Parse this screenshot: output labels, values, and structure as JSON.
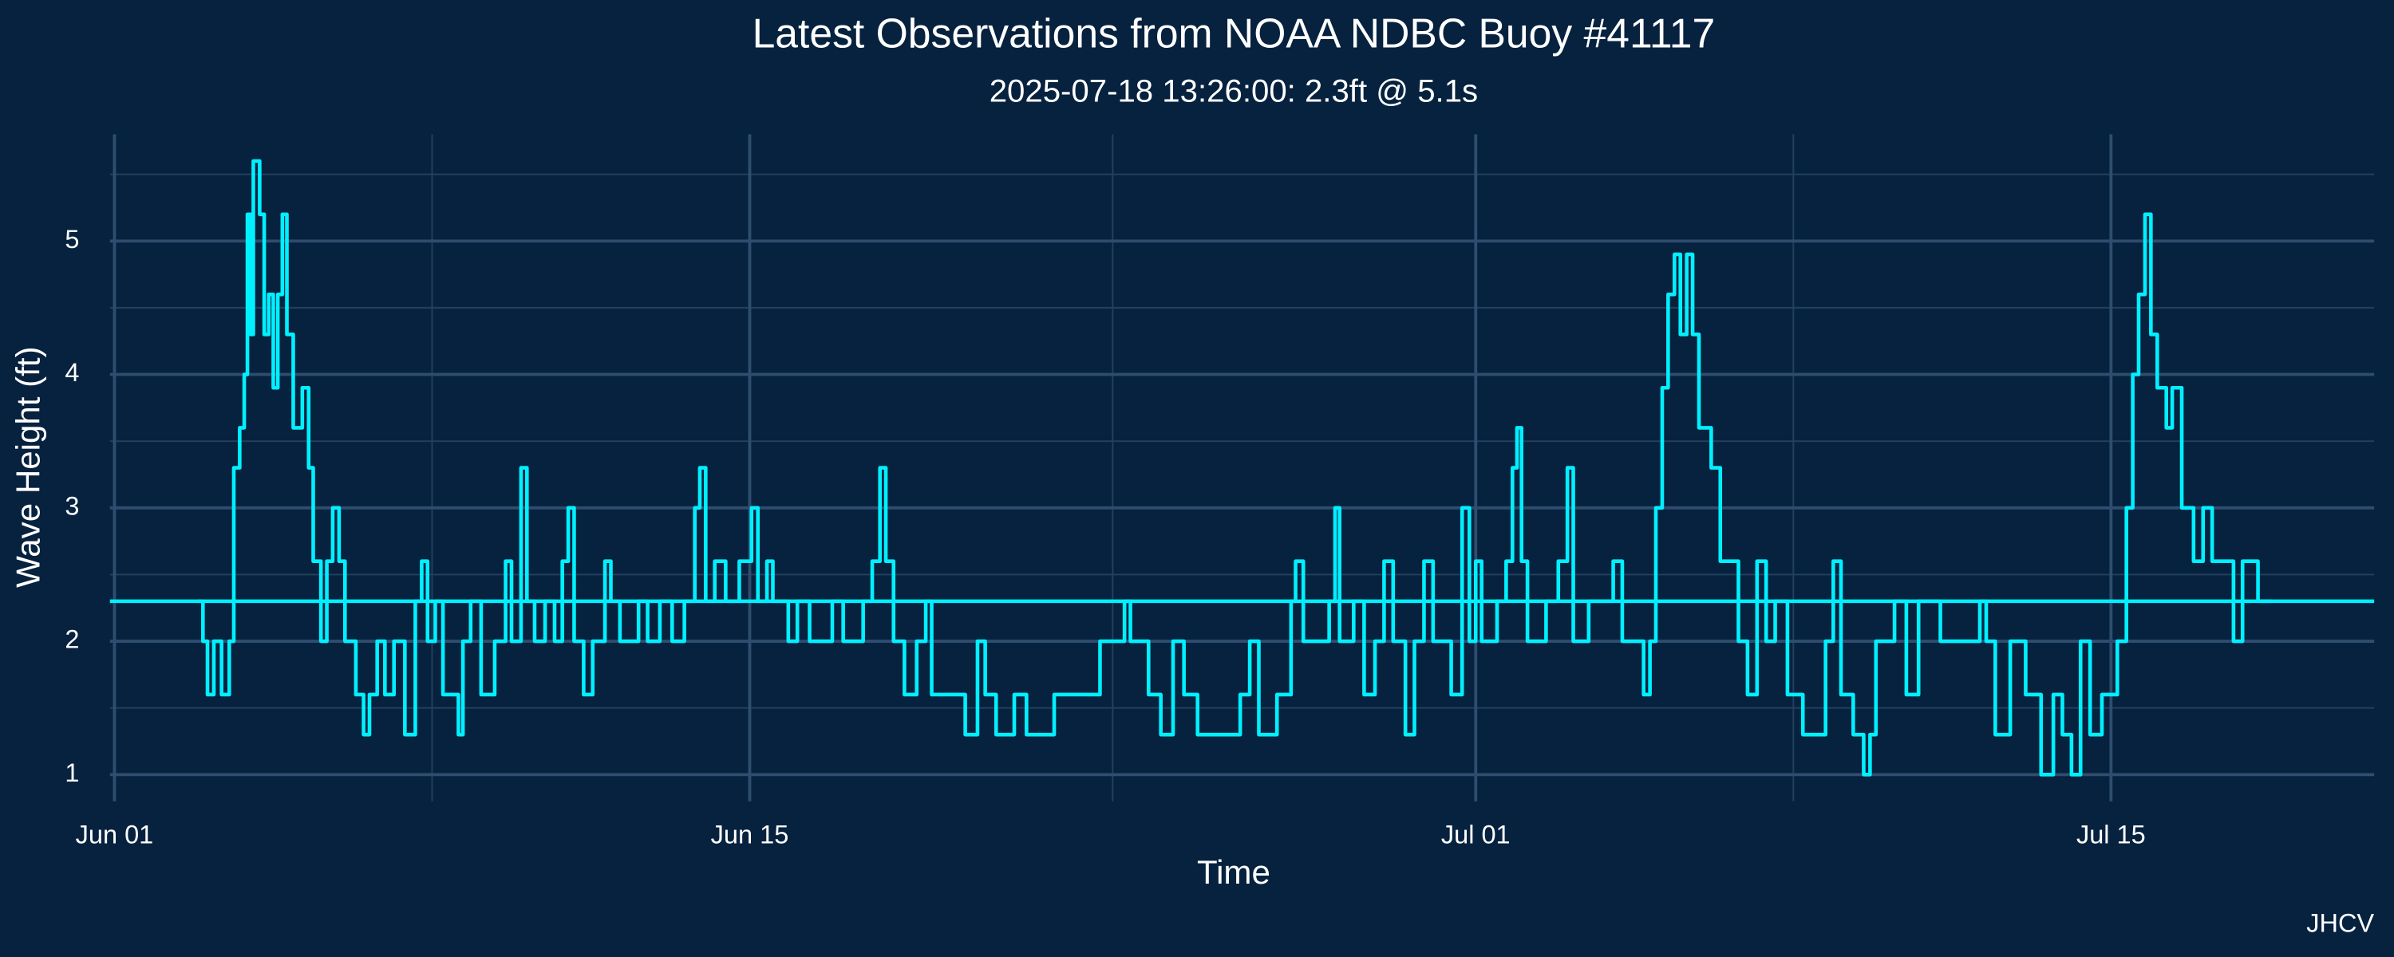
{
  "chart_data": {
    "type": "line",
    "title": "Latest Observations from NOAA NDBC Buoy #41117",
    "subtitle": "2025-07-18 13:26:00: 2.3ft @ 5.1s",
    "x_label": "Time",
    "y_label": "Wave Height (ft)",
    "caption": "JHCV",
    "background": "#06223f",
    "grid": true,
    "step": true,
    "xlim": [
      -0.1,
      49.8
    ],
    "xticks": [
      {
        "value": 0,
        "label": "Jun 01"
      },
      {
        "value": 14,
        "label": "Jun 15"
      },
      {
        "value": 30,
        "label": "Jul 01"
      },
      {
        "value": 44,
        "label": "Jul 15"
      }
    ],
    "x_minor_ticks": [
      7,
      22,
      37
    ],
    "ylim": [
      0.8,
      5.8
    ],
    "yticks": [
      1,
      2,
      3,
      4,
      5
    ],
    "y_minor_ticks": [
      1.5,
      2.5,
      3.5,
      4.5,
      5.5
    ],
    "reference_line": {
      "value": 2.3,
      "color": "#00f0ff"
    },
    "x": [
      1.85,
      1.95,
      2.05,
      2.19,
      2.36,
      2.53,
      2.63,
      2.76,
      2.86,
      2.93,
      3.0,
      3.06,
      3.2,
      3.3,
      3.4,
      3.5,
      3.6,
      3.7,
      3.8,
      3.94,
      4.14,
      4.28,
      4.38,
      4.55,
      4.68,
      4.81,
      4.95,
      5.08,
      5.32,
      5.49,
      5.62,
      5.79,
      5.96,
      6.16,
      6.4,
      6.63,
      6.77,
      6.9,
      7.07,
      7.24,
      7.58,
      7.68,
      7.85,
      8.08,
      8.38,
      8.62,
      8.75,
      8.96,
      9.09,
      9.26,
      9.49,
      9.7,
      9.87,
      10.0,
      10.13,
      10.34,
      10.54,
      10.81,
      10.94,
      11.14,
      11.55,
      11.75,
      12.02,
      12.29,
      12.56,
      12.79,
      12.9,
      13.03,
      13.23,
      13.47,
      13.77,
      14.04,
      14.18,
      14.38,
      14.51,
      14.85,
      15.05,
      15.32,
      15.82,
      16.06,
      16.5,
      16.7,
      16.87,
      17.0,
      17.17,
      17.41,
      17.68,
      17.88,
      18.01,
      18.75,
      19.02,
      19.19,
      19.43,
      19.83,
      20.1,
      20.71,
      21.72,
      22.26,
      22.39,
      22.79,
      23.06,
      23.33,
      23.57,
      23.87,
      24.81,
      25.02,
      25.22,
      25.62,
      25.93,
      26.03,
      26.2,
      26.77,
      26.9,
      27.0,
      27.31,
      27.54,
      27.78,
      27.98,
      28.18,
      28.45,
      28.65,
      28.86,
      29.06,
      29.46,
      29.7,
      29.86,
      30.0,
      30.13,
      30.47,
      30.67,
      30.81,
      30.91,
      31.01,
      31.14,
      31.55,
      31.82,
      32.02,
      32.15,
      32.49,
      33.03,
      33.23,
      33.7,
      33.84,
      33.97,
      34.11,
      34.24,
      34.38,
      34.51,
      34.65,
      34.78,
      34.92,
      35.19,
      35.39,
      35.79,
      35.99,
      36.2,
      36.4,
      36.6,
      36.87,
      37.21,
      37.71,
      37.88,
      38.05,
      38.32,
      38.55,
      38.69,
      38.82,
      39.23,
      39.49,
      39.76,
      40.24,
      41.11,
      41.25,
      41.45,
      41.78,
      42.12,
      42.46,
      42.73,
      42.93,
      43.13,
      43.33,
      43.54,
      43.8,
      44.14,
      44.34,
      44.48,
      44.61,
      44.75,
      44.88,
      45.02,
      45.22,
      45.35,
      45.56,
      45.82,
      46.03,
      46.23,
      46.7,
      46.9,
      47.24,
      47.54
    ],
    "series": [
      {
        "color": "#00f0ff",
        "values": [
          2.3,
          2.0,
          1.6,
          2.0,
          1.6,
          2.0,
          3.3,
          3.6,
          4.0,
          5.2,
          4.3,
          5.6,
          5.2,
          4.3,
          4.6,
          3.9,
          4.6,
          5.2,
          4.3,
          3.6,
          3.9,
          3.3,
          2.6,
          2.0,
          2.6,
          3.0,
          2.6,
          2.0,
          1.6,
          1.3,
          1.6,
          2.0,
          1.6,
          2.0,
          1.3,
          2.3,
          2.6,
          2.0,
          2.3,
          1.6,
          1.3,
          2.0,
          2.3,
          1.6,
          2.0,
          2.6,
          2.0,
          3.3,
          2.3,
          2.0,
          2.3,
          2.0,
          2.6,
          3.0,
          2.0,
          1.6,
          2.0,
          2.6,
          2.3,
          2.0,
          2.3,
          2.0,
          2.3,
          2.0,
          2.3,
          3.0,
          3.3,
          2.3,
          2.6,
          2.3,
          2.6,
          3.0,
          2.3,
          2.6,
          2.3,
          2.0,
          2.3,
          2.0,
          2.3,
          2.0,
          2.3,
          2.6,
          3.3,
          2.6,
          2.0,
          1.6,
          2.0,
          2.3,
          1.6,
          1.3,
          2.0,
          1.6,
          1.3,
          1.6,
          1.3,
          1.6,
          2.0,
          2.3,
          2.0,
          1.6,
          1.3,
          2.0,
          1.6,
          1.3,
          1.6,
          2.0,
          1.3,
          1.6,
          2.3,
          2.6,
          2.0,
          2.3,
          3.0,
          2.0,
          2.3,
          1.6,
          2.0,
          2.6,
          2.0,
          1.3,
          2.0,
          2.6,
          2.0,
          1.6,
          3.0,
          2.0,
          2.6,
          2.0,
          2.3,
          2.6,
          3.3,
          3.6,
          2.6,
          2.0,
          2.3,
          2.6,
          3.3,
          2.0,
          2.3,
          2.6,
          2.0,
          1.6,
          2.0,
          3.0,
          3.9,
          4.6,
          4.9,
          4.3,
          4.9,
          4.3,
          3.6,
          3.3,
          2.6,
          2.0,
          1.6,
          2.6,
          2.0,
          2.3,
          1.6,
          1.3,
          2.0,
          2.6,
          1.6,
          1.3,
          1.0,
          1.3,
          2.0,
          2.3,
          1.6,
          2.3,
          2.0,
          2.3,
          2.0,
          1.3,
          2.0,
          1.6,
          1.0,
          1.6,
          1.3,
          1.0,
          2.0,
          1.3,
          1.6,
          2.0,
          3.0,
          4.0,
          4.6,
          5.2,
          4.3,
          3.9,
          3.6,
          3.9,
          3.0,
          2.6,
          3.0,
          2.6,
          2.0,
          2.6,
          2.3,
          2.3
        ]
      }
    ]
  }
}
